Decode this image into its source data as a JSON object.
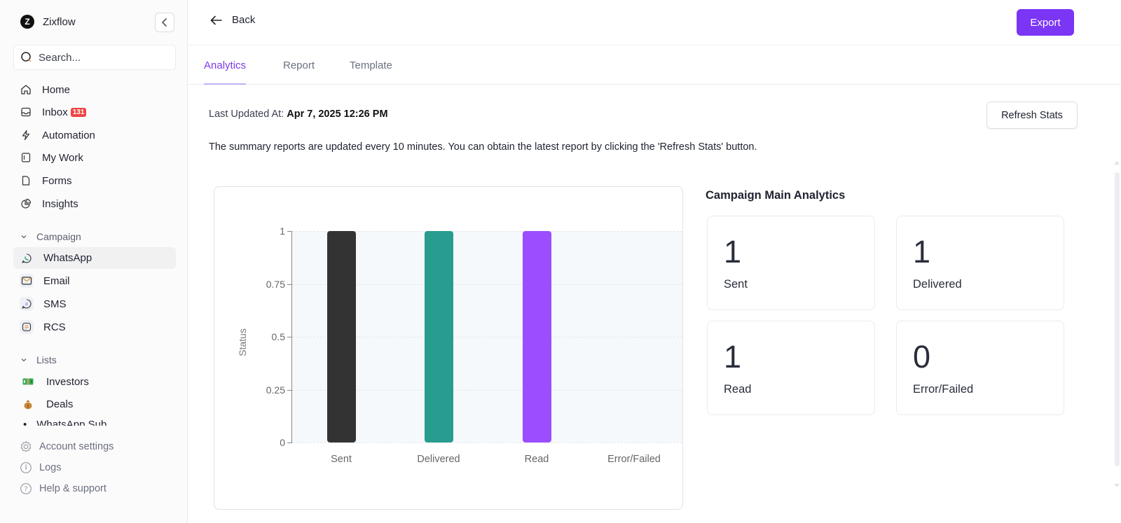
{
  "brand": {
    "name": "Zixflow",
    "logo_letter": "Z"
  },
  "search": {
    "placeholder": "Search..."
  },
  "sidebar": {
    "main_items": [
      {
        "label": "Home",
        "icon": "home-icon"
      },
      {
        "label": "Inbox",
        "icon": "inbox-icon",
        "badge": "131"
      },
      {
        "label": "Automation",
        "icon": "lightning-icon"
      },
      {
        "label": "My Work",
        "icon": "sidebar-panel-icon"
      },
      {
        "label": "Forms",
        "icon": "file-icon"
      },
      {
        "label": "Insights",
        "icon": "pie-chart-icon"
      }
    ],
    "campaign": {
      "header": "Campaign",
      "items": [
        {
          "label": "WhatsApp",
          "icon": "whatsapp-icon",
          "active": true
        },
        {
          "label": "Email",
          "icon": "email-icon"
        },
        {
          "label": "SMS",
          "icon": "sms-icon"
        },
        {
          "label": "RCS",
          "icon": "rcs-icon"
        }
      ]
    },
    "lists": {
      "header": "Lists",
      "items": [
        {
          "label": "Investors",
          "icon": "money-icon"
        },
        {
          "label": "Deals",
          "icon": "money-bag-icon"
        },
        {
          "label": "WhatsApp Sub",
          "icon": "list-icon",
          "clipped": true
        }
      ]
    },
    "footer": [
      {
        "label": "Account settings",
        "icon": "gear-icon"
      },
      {
        "label": "Logs",
        "icon": "clock-icon"
      },
      {
        "label": "Help & support",
        "icon": "help-icon"
      }
    ]
  },
  "header": {
    "back_label": "Back",
    "export_label": "Export"
  },
  "tabs": [
    {
      "label": "Analytics",
      "active": true
    },
    {
      "label": "Report",
      "active": false
    },
    {
      "label": "Template",
      "active": false
    }
  ],
  "content": {
    "last_updated_label": "Last Updated At:",
    "last_updated_value": "Apr 7, 2025 12:26 PM",
    "refresh_label": "Refresh Stats",
    "summary_text": "The summary reports are updated every 10 minutes. You can obtain the latest report by clicking the 'Refresh Stats' button."
  },
  "analytics": {
    "title": "Campaign Main Analytics",
    "stats": [
      {
        "value": "1",
        "label": "Sent"
      },
      {
        "value": "1",
        "label": "Delivered"
      },
      {
        "value": "1",
        "label": "Read"
      },
      {
        "value": "0",
        "label": "Error/Failed"
      }
    ]
  },
  "colors": {
    "accent": "#7b35f5",
    "sent": "#333333",
    "delivered": "#279c8f",
    "read": "#9b4dff",
    "error": "#e74c3c"
  },
  "chart_data": {
    "type": "bar",
    "title": "",
    "categories": [
      "Sent",
      "Delivered",
      "Read",
      "Error/Failed"
    ],
    "values": [
      1,
      1,
      1,
      0
    ],
    "bar_colors": [
      "#333333",
      "#279c8f",
      "#9b4dff",
      "#e74c3c"
    ],
    "xlabel": "",
    "ylabel": "Status",
    "ylim": [
      0,
      1
    ],
    "yticks": [
      "1",
      "0.75",
      "0.5",
      "0.25",
      "0"
    ],
    "grid": true,
    "legend": "none"
  }
}
